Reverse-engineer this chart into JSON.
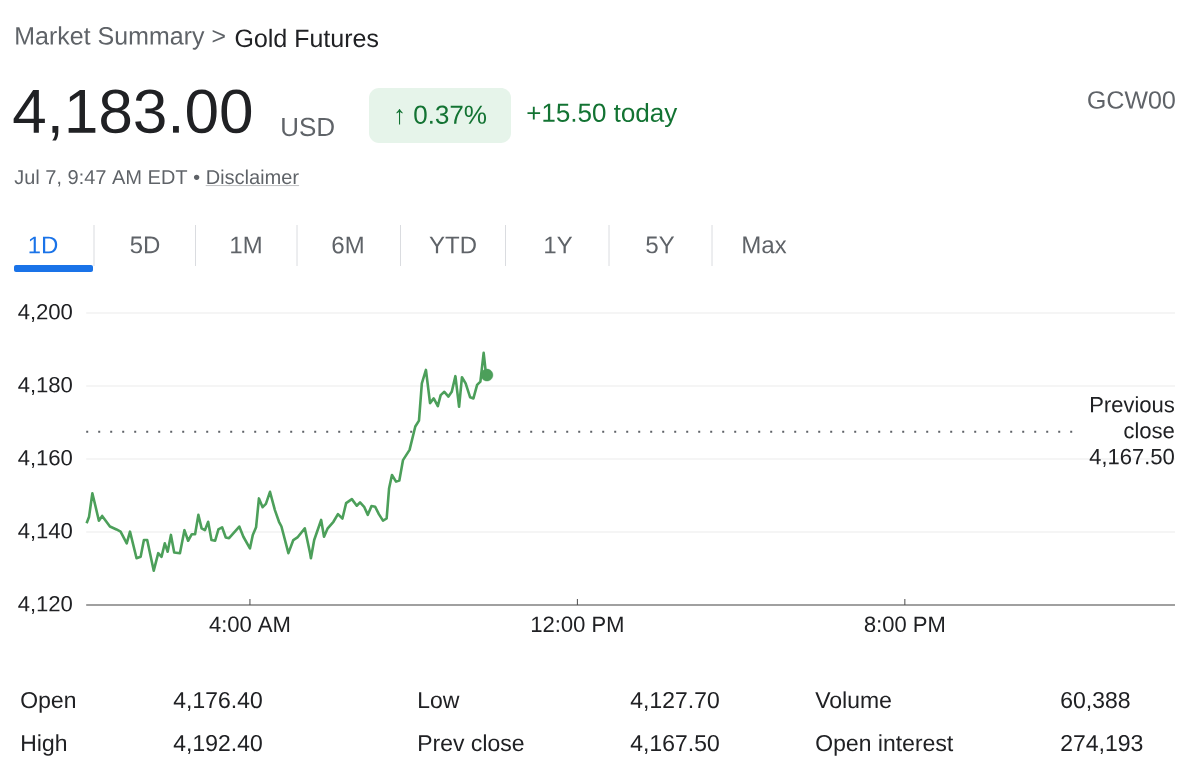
{
  "chart_data": {
    "type": "line",
    "x": [
      0.01,
      0.07,
      0.15,
      0.23,
      0.31,
      0.39,
      0.58,
      0.74,
      0.84,
      0.99,
      1.07,
      1.23,
      1.33,
      1.41,
      1.49,
      1.65,
      1.76,
      1.84,
      1.92,
      1.99,
      2.07,
      2.15,
      2.29,
      2.4,
      2.49,
      2.58,
      2.66,
      2.74,
      2.82,
      2.9,
      2.98,
      3.06,
      3.15,
      3.23,
      3.32,
      3.41,
      3.49,
      3.74,
      3.84,
      4.0,
      4.07,
      4.15,
      4.22,
      4.31,
      4.39,
      4.49,
      4.61,
      4.71,
      4.77,
      4.94,
      5.06,
      5.16,
      5.34,
      5.47,
      5.49,
      5.57,
      5.74,
      5.81,
      5.9,
      6.04,
      6.15,
      6.26,
      6.35,
      6.49,
      6.61,
      6.69,
      6.79,
      6.88,
      6.97,
      7.06,
      7.15,
      7.25,
      7.34,
      7.4,
      7.47,
      7.57,
      7.65,
      7.74,
      7.9,
      8.04,
      8.13,
      8.2,
      8.3,
      8.4,
      8.49,
      8.59,
      8.66,
      8.75,
      8.85,
      8.93,
      9.02,
      9.11,
      9.18,
      9.27,
      9.38,
      9.46,
      9.55,
      9.63,
      9.71,
      9.77
    ],
    "series": [
      {
        "color": "#4c9f5a",
        "values": [
          4142.4,
          4144.2,
          4150.6,
          4146.9,
          4143.1,
          4144.4,
          4141.5,
          4140.7,
          4140.1,
          4136.9,
          4140.1,
          4132.8,
          4133.2,
          4137.8,
          4137.8,
          4129.4,
          4134.2,
          4133.2,
          4136.9,
          4134.6,
          4139.2,
          4134.4,
          4134.2,
          4140.5,
          4137.6,
          4139.4,
          4139.4,
          4144.7,
          4141.0,
          4140.5,
          4142.8,
          4137.8,
          4137.6,
          4140.7,
          4141.3,
          4138.5,
          4138.3,
          4141.5,
          4138.7,
          4135.5,
          4139.2,
          4141.3,
          4149.2,
          4146.8,
          4147.7,
          4151.0,
          4146.0,
          4142.8,
          4141.5,
          4134.2,
          4137.8,
          4138.5,
          4141.0,
          4134.2,
          4132.8,
          4137.8,
          4143.3,
          4138.7,
          4141.0,
          4142.8,
          4144.9,
          4143.7,
          4147.9,
          4149.0,
          4147.2,
          4148.1,
          4146.9,
          4144.7,
          4147.1,
          4146.9,
          4144.9,
          4143.1,
          4143.7,
          4152.0,
          4155.6,
          4153.8,
          4154.1,
          4159.7,
          4162.5,
          4168.9,
          4170.5,
          4180.7,
          4184.4,
          4175.3,
          4176.6,
          4174.5,
          4177.5,
          4178.4,
          4177.1,
          4178.4,
          4182.7,
          4174.3,
          4182.4,
          4180.7,
          4176.9,
          4176.6,
          4180.3,
          4181.2,
          4189.1,
          4183.0
        ]
      },
      {
        "type": "scatter",
        "color": "#4c9f5a",
        "marker": "circle",
        "x": [
          9.79
        ],
        "values": [
          4183.0
        ]
      }
    ],
    "xlim": [
      0,
      26.6
    ],
    "ylim": [
      4120,
      4200
    ],
    "xticks": [
      {
        "value": 4,
        "label": "4:00 AM"
      },
      {
        "value": 12,
        "label": "12:00 PM"
      },
      {
        "value": 20,
        "label": "8:00 PM"
      }
    ],
    "yticks": [
      {
        "value": 4120,
        "label": "4,120"
      },
      {
        "value": 4140,
        "label": "4,140"
      },
      {
        "value": 4160,
        "label": "4,160"
      },
      {
        "value": 4180,
        "label": "4,180"
      },
      {
        "value": 4200,
        "label": "4,200"
      }
    ],
    "grid": "y",
    "ref_lines": [
      {
        "axis": "y",
        "value": 4167.5,
        "label": "Previous close 4,167.50",
        "color": "#5f6368",
        "line_style": "dotted"
      }
    ],
    "annotations": [
      "Market Summary >",
      "Gold Futures",
      "4,183.00",
      "USD",
      "↑ 0.37%",
      "+15.50 today",
      "GCW00",
      "Jul 7, 9:47 AM EDT •",
      "Disclaimer",
      "1D",
      "5D",
      "1M",
      "6M",
      "YTD",
      "1Y",
      "5Y",
      "Max",
      "Open",
      "4,176.40",
      "Low",
      "4,127.70",
      "Volume",
      "60,388",
      "High",
      "4,192.40",
      "Prev close",
      "4,167.50",
      "Open interest",
      "274,193"
    ]
  }
}
